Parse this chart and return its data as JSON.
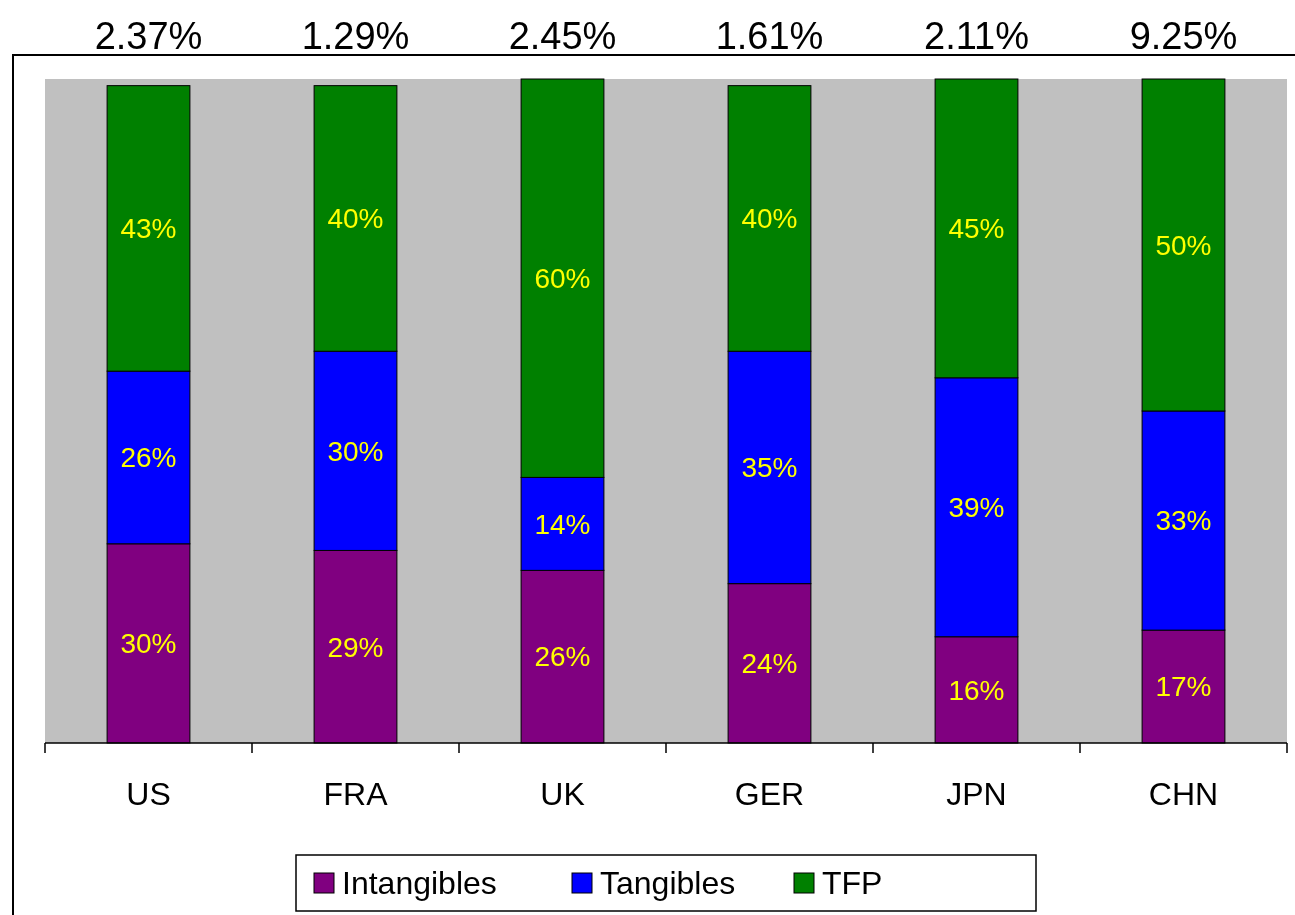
{
  "chart_data": {
    "type": "bar",
    "stacked": true,
    "categories": [
      "US",
      "FRA",
      "UK",
      "GER",
      "JPN",
      "CHN"
    ],
    "series": [
      {
        "name": "Intangibles",
        "color": "#800080",
        "values": [
          30,
          29,
          26,
          24,
          16,
          17
        ],
        "value_labels": [
          "30%",
          "29%",
          "26%",
          "24%",
          "16%",
          "17%"
        ]
      },
      {
        "name": "Tangibles",
        "color": "#0000ff",
        "values": [
          26,
          30,
          14,
          35,
          39,
          33
        ],
        "value_labels": [
          "26%",
          "30%",
          "14%",
          "35%",
          "39%",
          "33%"
        ]
      },
      {
        "name": "TFP",
        "color": "#008000",
        "values": [
          43,
          40,
          60,
          40,
          45,
          50
        ],
        "value_labels": [
          "43%",
          "40%",
          "60%",
          "40%",
          "45%",
          "50%"
        ]
      }
    ],
    "annotations": [
      "2.37%",
      "1.29%",
      "2.45%",
      "1.61%",
      "2.11%",
      "9.25%"
    ],
    "legend": "bottom"
  }
}
